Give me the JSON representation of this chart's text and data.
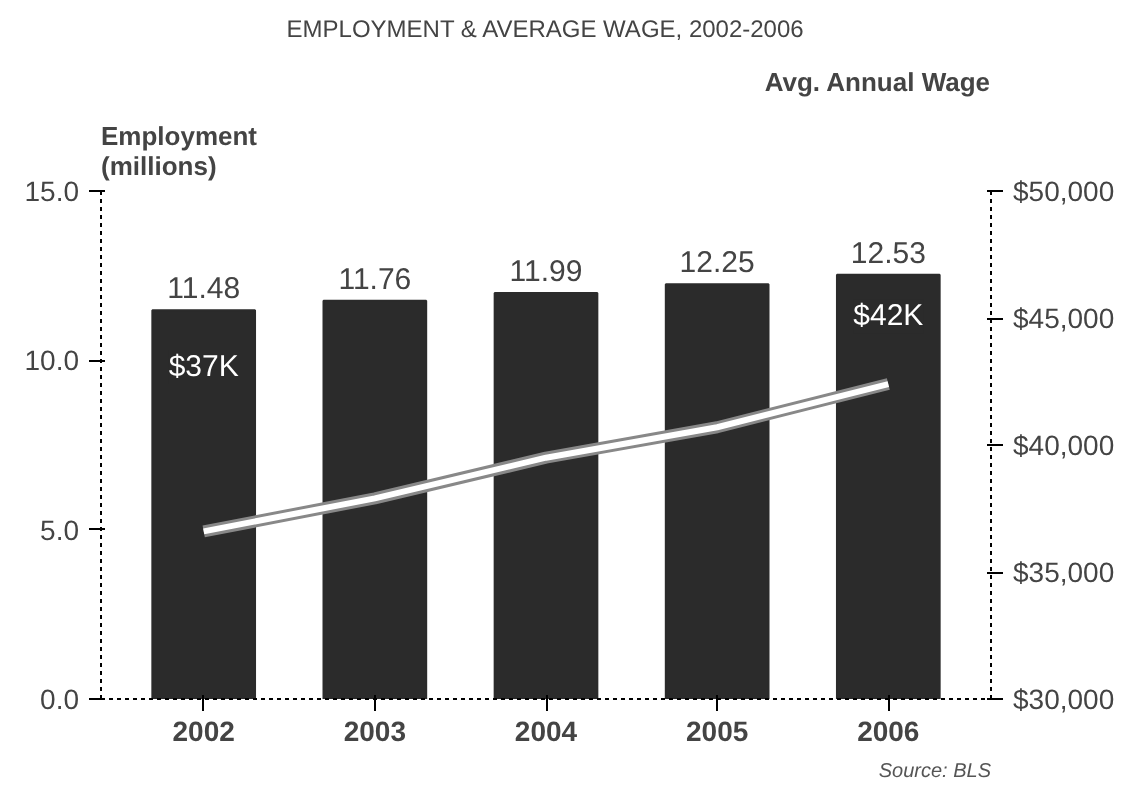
{
  "chart_data": {
    "type": "bar",
    "title": "EMPLOYMENT & AVERAGE WAGE, 2002-2006",
    "ylabel": "Employment\n(millions)",
    "y2label": "Avg. Annual Wage",
    "categories": [
      "2002",
      "2003",
      "2004",
      "2005",
      "2006"
    ],
    "series": [
      {
        "color": "#2b2b2b",
        "values": [
          11.48,
          11.76,
          11.99,
          12.25,
          12.53
        ],
        "value_labels": [
          "11.48",
          "11.76",
          "11.99",
          "12.25",
          "12.53"
        ]
      },
      {
        "type": "line",
        "axis": "y2",
        "color": "#ffffff",
        "values": [
          36600,
          37900,
          39500,
          40700,
          42400
        ]
      }
    ],
    "annotations": [
      "$37K",
      "$42K",
      "Source: BLS"
    ],
    "ylim": [
      0,
      15
    ],
    "yticks": [
      {
        "value": 0,
        "label": "0.0"
      },
      {
        "value": 5,
        "label": "5.0"
      },
      {
        "value": 10,
        "label": "10.0"
      },
      {
        "value": 15,
        "label": "15.0"
      }
    ],
    "y2lim": [
      30000,
      50000
    ],
    "y2ticks": [
      {
        "value": 30000,
        "label": "$30,000"
      },
      {
        "value": 35000,
        "label": "$35,000"
      },
      {
        "value": 40000,
        "label": "$40,000"
      },
      {
        "value": 45000,
        "label": "$45,000"
      },
      {
        "value": 50000,
        "label": "$50,000"
      }
    ],
    "grid": false
  }
}
